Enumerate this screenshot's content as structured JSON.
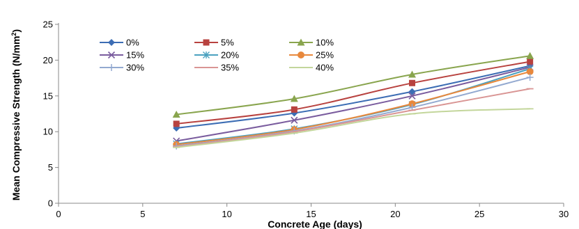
{
  "chart_data": {
    "type": "line",
    "xlabel": "Concrete Age (days)",
    "ylabel_main": "Mean Compressive Strength (N/mm",
    "ylabel_sup": "2",
    "ylabel_end": ")",
    "xlim": [
      0,
      30
    ],
    "ylim": [
      0,
      25
    ],
    "xticks": [
      0,
      5,
      10,
      15,
      20,
      25,
      30
    ],
    "yticks": [
      0,
      5,
      10,
      15,
      20,
      25
    ],
    "grid": false,
    "legend_placement": "top-left inside plot",
    "series": [
      {
        "name": "0%",
        "color": "#3c6db4",
        "marker": "diamond",
        "x": [
          7,
          14,
          21,
          28
        ],
        "y": [
          10.5,
          12.6,
          15.6,
          19.2
        ]
      },
      {
        "name": "5%",
        "color": "#b8423f",
        "marker": "square",
        "x": [
          7,
          14,
          21,
          28
        ],
        "y": [
          11.1,
          13.1,
          16.8,
          19.8
        ]
      },
      {
        "name": "10%",
        "color": "#89a54e",
        "marker": "triangle",
        "x": [
          7,
          14,
          21,
          28
        ],
        "y": [
          12.4,
          14.6,
          18.0,
          20.6
        ]
      },
      {
        "name": "15%",
        "color": "#7a5c9e",
        "marker": "x",
        "x": [
          7,
          14,
          21,
          28
        ],
        "y": [
          8.7,
          11.6,
          15.0,
          19.0
        ]
      },
      {
        "name": "20%",
        "color": "#4aa1bf",
        "marker": "star",
        "x": [
          7,
          14,
          21,
          28
        ],
        "y": [
          8.3,
          10.4,
          13.8,
          18.8
        ]
      },
      {
        "name": "25%",
        "color": "#e8883c",
        "marker": "circle",
        "x": [
          7,
          14,
          21,
          28
        ],
        "y": [
          8.2,
          10.3,
          13.9,
          18.4
        ]
      },
      {
        "name": "30%",
        "color": "#93a9d0",
        "marker": "plus",
        "x": [
          7,
          14,
          21,
          28
        ],
        "y": [
          8.0,
          10.1,
          13.4,
          17.6
        ]
      },
      {
        "name": "35%",
        "color": "#d99594",
        "marker": "dash",
        "x": [
          7,
          14,
          21,
          28
        ],
        "y": [
          7.9,
          10.0,
          13.0,
          16.0
        ]
      },
      {
        "name": "40%",
        "color": "#c3d69b",
        "marker": "dash",
        "x": [
          7,
          14,
          21,
          28
        ],
        "y": [
          7.8,
          9.8,
          12.5,
          13.2
        ]
      }
    ]
  }
}
